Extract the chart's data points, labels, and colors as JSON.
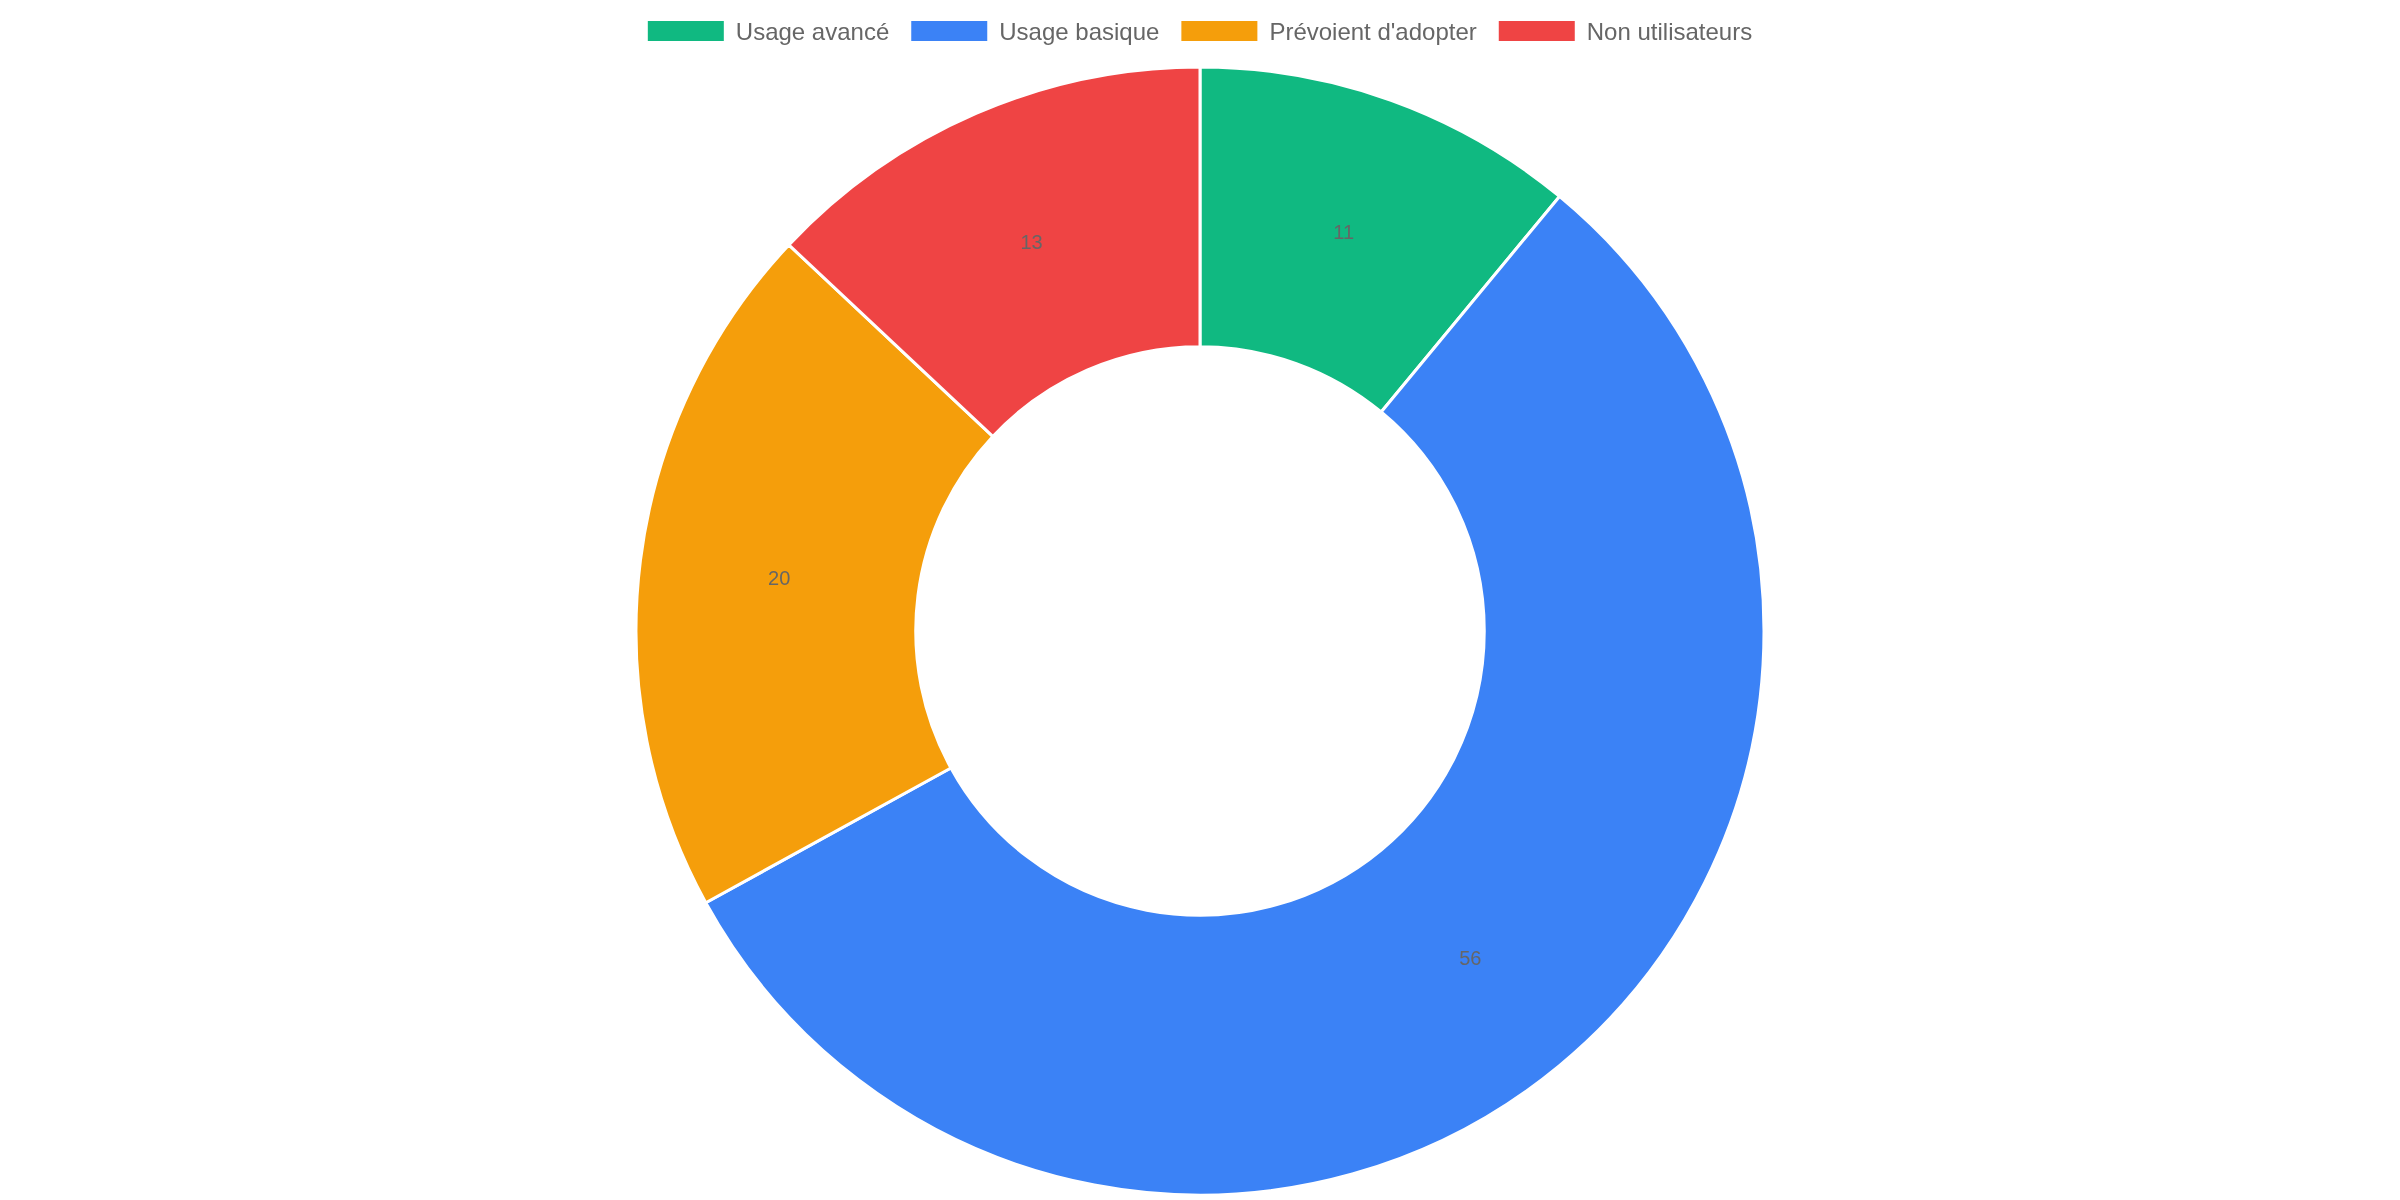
{
  "chart_data": {
    "type": "donut",
    "categories": [
      "Usage avancé",
      "Usage basique",
      "Prévoient d'adopter",
      "Non utilisateurs"
    ],
    "values": [
      11,
      56,
      20,
      13
    ],
    "colors": [
      "#10b981",
      "#3b82f6",
      "#f59e0b",
      "#ef4444"
    ],
    "data_labels": true,
    "legend": "top"
  }
}
